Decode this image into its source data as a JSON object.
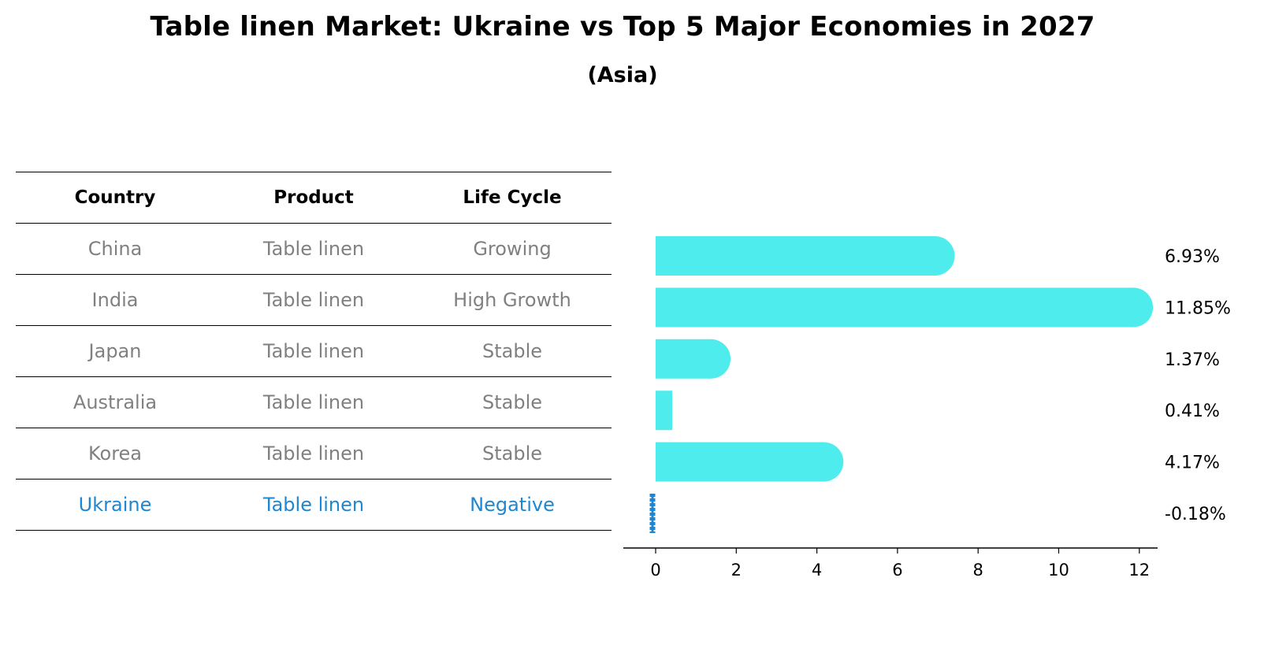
{
  "title": "Table linen Market: Ukraine vs Top 5 Major Economies in 2027",
  "subtitle": "(Asia)",
  "table": {
    "headers": [
      "Country",
      "Product",
      "Life Cycle"
    ],
    "rows": [
      {
        "country": "China",
        "product": "Table linen",
        "life_cycle": "Growing"
      },
      {
        "country": "India",
        "product": "Table linen",
        "life_cycle": "High Growth"
      },
      {
        "country": "Japan",
        "product": "Table linen",
        "life_cycle": "Stable"
      },
      {
        "country": "Australia",
        "product": "Table linen",
        "life_cycle": "Stable"
      },
      {
        "country": "Korea",
        "product": "Table linen",
        "life_cycle": "Stable"
      },
      {
        "country": "Ukraine",
        "product": "Table linen",
        "life_cycle": "Negative"
      }
    ]
  },
  "colors": {
    "bar": "#4eecec",
    "highlight": "#1f86d1",
    "muted_text": "#808080"
  },
  "chart_data": {
    "type": "bar",
    "orientation": "horizontal",
    "categories": [
      "China",
      "India",
      "Japan",
      "Australia",
      "Korea",
      "Ukraine"
    ],
    "values": [
      6.93,
      11.85,
      1.37,
      0.41,
      4.17,
      -0.18
    ],
    "value_labels": [
      "6.93%",
      "11.85%",
      "1.37%",
      "0.41%",
      "4.17%",
      "-0.18%"
    ],
    "xlim": [
      -0.8,
      12.4
    ],
    "xticks": [
      0,
      2,
      4,
      6,
      8,
      10,
      12
    ],
    "highlight_category": "Ukraine",
    "grid": false
  }
}
